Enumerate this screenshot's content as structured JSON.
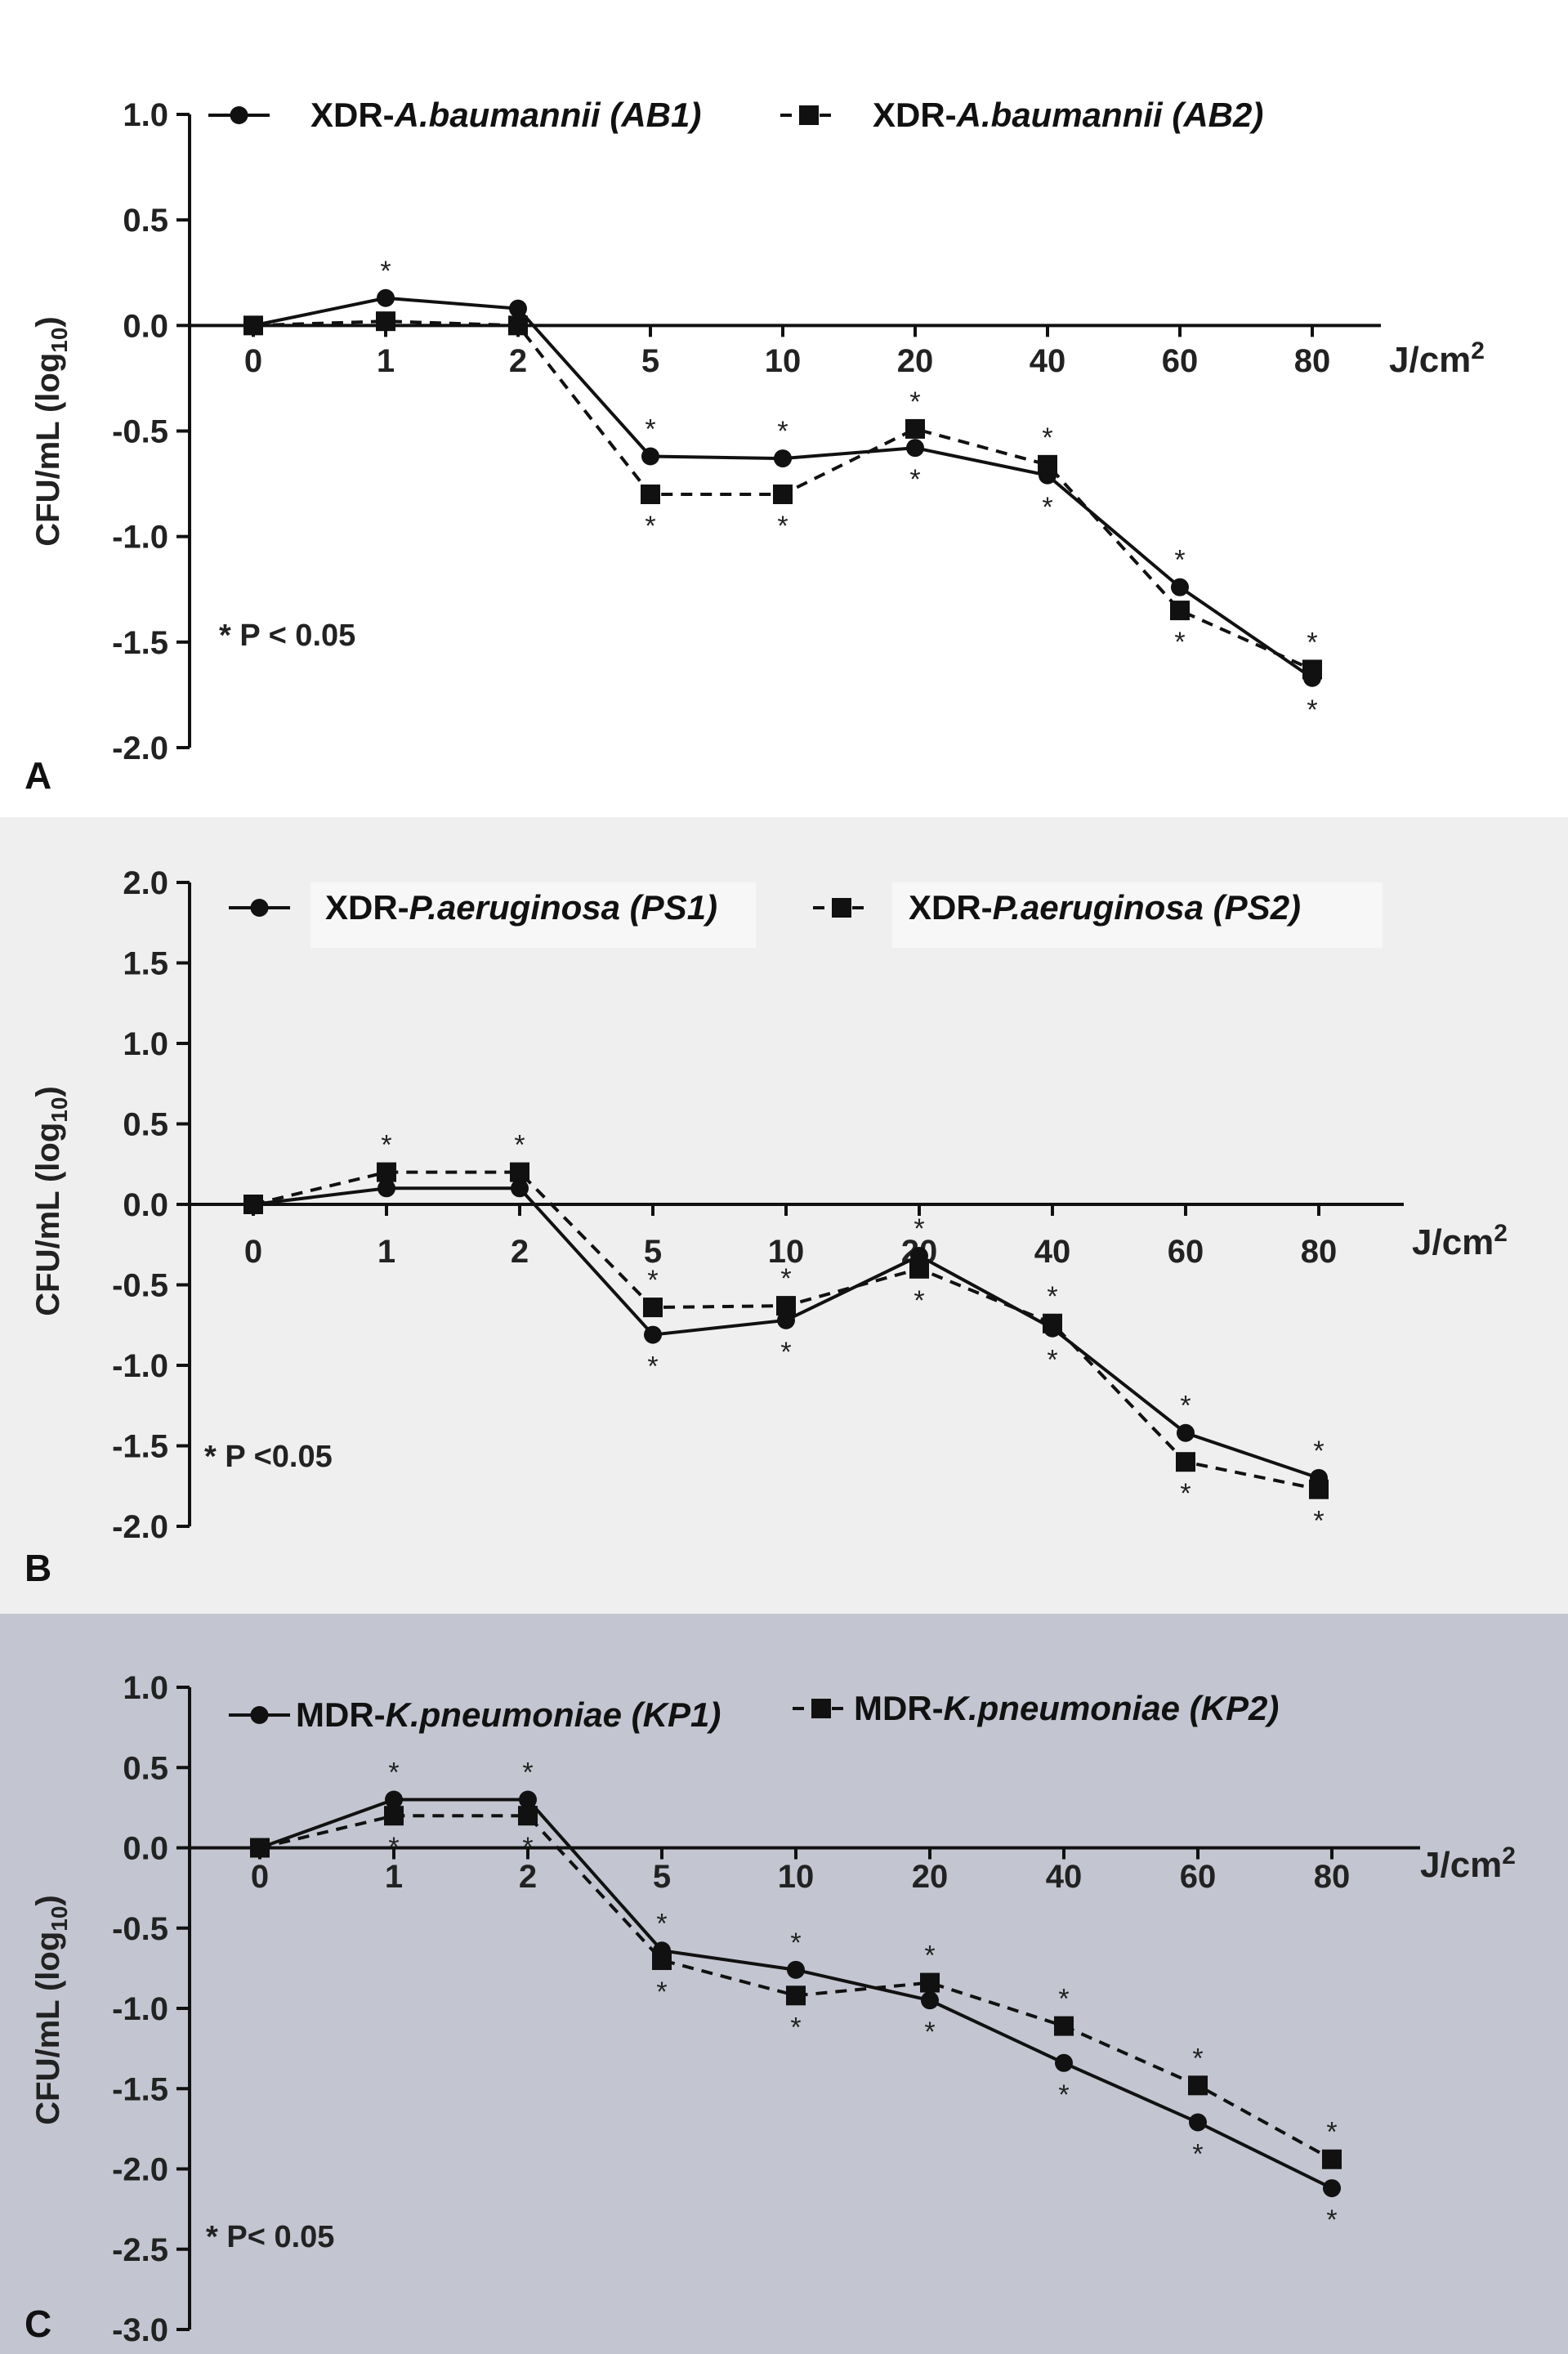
{
  "chart_data": [
    {
      "type": "line",
      "panel": "A",
      "categories": [
        "0",
        "1",
        "2",
        "5",
        "10",
        "20",
        "40",
        "60",
        "80"
      ],
      "x_unit_label": "J/cm",
      "x_unit_sup": "2",
      "ylabel_main": "CFU/mL (log",
      "ylabel_sub": "10",
      "ylabel_end": ")",
      "yticks": [
        "1.0",
        "0.5",
        "0.0",
        "-0.5",
        "-1.0",
        "-1.5",
        "-2.0"
      ],
      "ylim": [
        -2.0,
        1.0
      ],
      "pvalue_note": "* P < 0.05",
      "series": [
        {
          "name": "XDR-A.baumannii (AB1)",
          "prefix": "XDR-",
          "italic": "A.baumannii (AB1)",
          "marker": "circle",
          "line": "solid",
          "values": [
            0.0,
            0.13,
            0.08,
            -0.62,
            -0.63,
            -0.58,
            -0.71,
            -1.24,
            -1.67
          ],
          "stars": [
            "",
            "above",
            "",
            "above",
            "above",
            "below",
            "below",
            "above",
            "below"
          ]
        },
        {
          "name": "XDR-A.baumannii (AB2)",
          "prefix": "XDR-",
          "italic": "A.baumannii (AB2)",
          "marker": "square",
          "line": "dashed",
          "values": [
            0.0,
            0.02,
            0.0,
            -0.8,
            -0.8,
            -0.49,
            -0.66,
            -1.35,
            -1.63
          ],
          "stars": [
            "",
            "",
            "",
            "below",
            "below",
            "above",
            "above",
            "below",
            "above"
          ]
        }
      ]
    },
    {
      "type": "line",
      "panel": "B",
      "categories": [
        "0",
        "1",
        "2",
        "5",
        "10",
        "20",
        "40",
        "60",
        "80"
      ],
      "x_unit_label": "J/cm",
      "x_unit_sup": "2",
      "ylabel_main": "CFU/mL (log",
      "ylabel_sub": "10",
      "ylabel_end": ")",
      "yticks": [
        "2.0",
        "1.5",
        "1.0",
        "0.5",
        "0.0",
        "-0.5",
        "-1.0",
        "-1.5",
        "-2.0"
      ],
      "ylim": [
        -2.0,
        2.0
      ],
      "pvalue_note": "*  P <0.05",
      "series": [
        {
          "name": "XDR-P.aeruginosa (PS1)",
          "prefix": "XDR-",
          "italic": "P.aeruginosa (PS1)",
          "marker": "circle",
          "line": "solid",
          "values": [
            0.0,
            0.1,
            0.1,
            -0.81,
            -0.72,
            -0.32,
            -0.77,
            -1.42,
            -1.7
          ],
          "stars": [
            "",
            "",
            "",
            "below",
            "below",
            "above",
            "below",
            "above",
            "above"
          ]
        },
        {
          "name": "XDR-P.aeruginosa (PS2)",
          "prefix": "XDR-",
          "italic": "P.aeruginosa (PS2)",
          "marker": "square",
          "line": "dashed",
          "values": [
            0.0,
            0.2,
            0.2,
            -0.64,
            -0.63,
            -0.4,
            -0.74,
            -1.6,
            -1.77
          ],
          "stars": [
            "",
            "above",
            "above",
            "above",
            "above",
            "below",
            "above",
            "below",
            "below"
          ]
        }
      ]
    },
    {
      "type": "line",
      "panel": "C",
      "categories": [
        "0",
        "1",
        "2",
        "5",
        "10",
        "20",
        "40",
        "60",
        "80"
      ],
      "x_unit_label": "J/cm",
      "x_unit_sup": "2",
      "ylabel_main": "CFU/mL (log",
      "ylabel_sub": "10",
      "ylabel_end": ")",
      "yticks": [
        "1.0",
        "0.5",
        "0.0",
        "-0.5",
        "-1.0",
        "-1.5",
        "-2.0",
        "-2.5",
        "-3.0"
      ],
      "ylim": [
        -3.0,
        1.0
      ],
      "pvalue_note": "* P< 0.05",
      "series": [
        {
          "name": "MDR-K.pneumoniae (KP1)",
          "prefix": "MDR-",
          "italic": "K.pneumoniae (KP1)",
          "marker": "circle",
          "line": "solid",
          "values": [
            0.0,
            0.3,
            0.3,
            -0.64,
            -0.76,
            -0.95,
            -1.34,
            -1.71,
            -2.12
          ],
          "stars": [
            "",
            "above",
            "above",
            "above",
            "above",
            "below",
            "below",
            "below",
            "below"
          ]
        },
        {
          "name": "MDR-K.pneumoniae (KP2)",
          "prefix": "MDR-",
          "italic": "K.pneumoniae (KP2)",
          "marker": "square",
          "line": "dashed",
          "values": [
            0.0,
            0.2,
            0.2,
            -0.7,
            -0.92,
            -0.84,
            -1.11,
            -1.48,
            -1.94
          ],
          "stars": [
            "",
            "below",
            "below",
            "below",
            "below",
            "above",
            "above",
            "above",
            "above"
          ]
        }
      ]
    }
  ]
}
